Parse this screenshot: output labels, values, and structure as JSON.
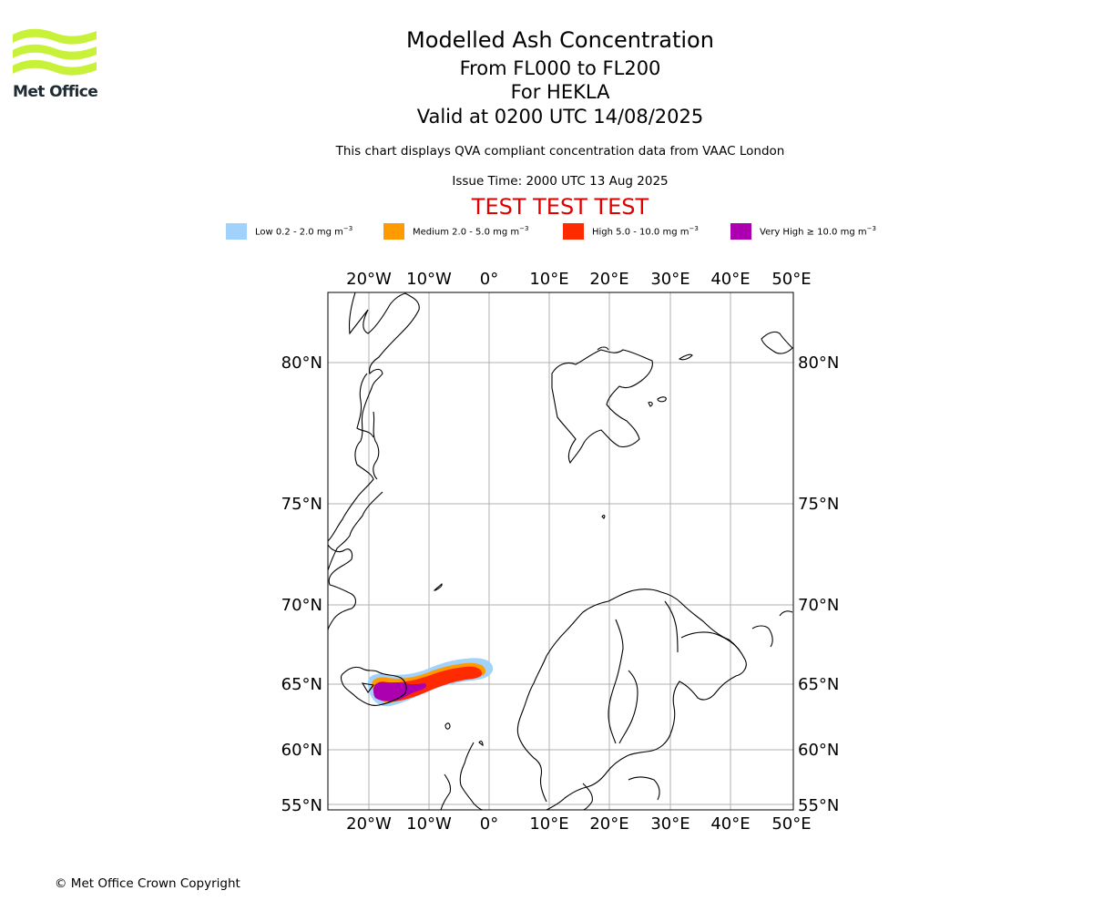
{
  "logo": {
    "name": "Met Office",
    "color": "#c8f13a",
    "text_color": "#1e2b33"
  },
  "title": {
    "main": "Modelled Ash Concentration",
    "flight_levels": "From FL000 to FL200",
    "volcano": "For HEKLA",
    "valid": "Valid at 0200 UTC 14/08/2025"
  },
  "subtitle": "This chart displays QVA compliant concentration data from VAAC London",
  "issue_time": "Issue Time: 2000 UTC 13 Aug 2025",
  "test_banner": "TEST TEST TEST",
  "legend": [
    {
      "label": "Low 0.2 - 2.0 mg m",
      "exp": "−3",
      "color": "#a0d2fc"
    },
    {
      "label": "Medium 2.0 - 5.0 mg m",
      "exp": "−3",
      "color": "#ff9a00"
    },
    {
      "label": "High 5.0 - 10.0 mg m",
      "exp": "−3",
      "color": "#ff2b00"
    },
    {
      "label": "Very High ≥ 10.0 mg m",
      "exp": "−3",
      "color": "#ac00b0"
    }
  ],
  "map": {
    "lon_ticks": [
      "20°W",
      "10°W",
      "0°",
      "10°E",
      "20°E",
      "30°E",
      "40°E",
      "50°E"
    ],
    "lat_ticks": [
      "80°N",
      "75°N",
      "70°N",
      "65°N",
      "60°N",
      "55°N"
    ],
    "grid": true
  },
  "copyright": "© Met Office Crown Copyright"
}
